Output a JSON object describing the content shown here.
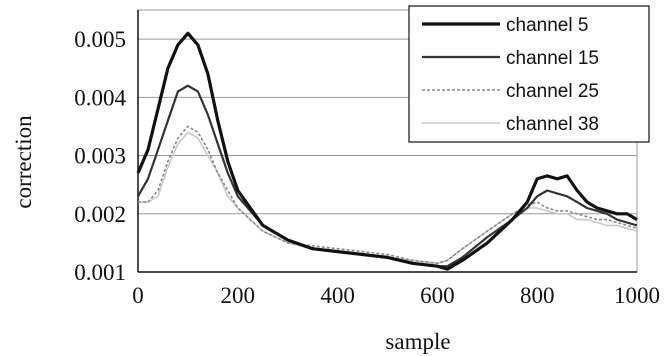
{
  "chart_data": {
    "type": "line",
    "title": "",
    "xlabel": "sample",
    "ylabel": "correction",
    "xlim": [
      0,
      1000
    ],
    "ylim": [
      0.001,
      0.0055
    ],
    "x_ticks": [
      "0",
      "200",
      "400",
      "600",
      "800",
      "1000"
    ],
    "y_ticks": [
      "0.001",
      "0.002",
      "0.003",
      "0.004",
      "0.005"
    ],
    "grid": "horizontal",
    "legend_position": "top-right",
    "series": [
      {
        "name": "channel 5",
        "color": "#111111",
        "x": [
          0,
          20,
          40,
          60,
          80,
          100,
          120,
          140,
          160,
          180,
          200,
          250,
          300,
          350,
          400,
          450,
          500,
          550,
          600,
          620,
          650,
          700,
          750,
          780,
          800,
          820,
          840,
          860,
          880,
          900,
          920,
          940,
          960,
          980,
          1000
        ],
        "values": [
          0.0027,
          0.0031,
          0.0038,
          0.0045,
          0.0049,
          0.0051,
          0.0049,
          0.0044,
          0.0036,
          0.0029,
          0.0024,
          0.0018,
          0.00155,
          0.0014,
          0.00135,
          0.0013,
          0.00125,
          0.00115,
          0.0011,
          0.00105,
          0.0012,
          0.0015,
          0.0019,
          0.0022,
          0.0026,
          0.00265,
          0.0026,
          0.00265,
          0.0024,
          0.0022,
          0.0021,
          0.00205,
          0.002,
          0.002,
          0.0019
        ]
      },
      {
        "name": "channel 15",
        "color": "#333333",
        "x": [
          0,
          20,
          40,
          60,
          80,
          100,
          120,
          140,
          160,
          180,
          200,
          250,
          300,
          350,
          400,
          450,
          500,
          550,
          600,
          620,
          650,
          700,
          750,
          780,
          800,
          820,
          840,
          860,
          880,
          900,
          920,
          940,
          960,
          980,
          1000
        ],
        "values": [
          0.0023,
          0.0026,
          0.0031,
          0.0036,
          0.0041,
          0.0042,
          0.0041,
          0.0037,
          0.0032,
          0.0027,
          0.0023,
          0.0018,
          0.00155,
          0.0014,
          0.00135,
          0.0013,
          0.00125,
          0.00115,
          0.0011,
          0.0011,
          0.00125,
          0.0016,
          0.0019,
          0.0021,
          0.0023,
          0.0024,
          0.00235,
          0.0023,
          0.0022,
          0.0021,
          0.00205,
          0.002,
          0.0019,
          0.00185,
          0.0018
        ]
      },
      {
        "name": "channel 25",
        "color": "#8a8a8a",
        "x": [
          0,
          20,
          40,
          60,
          80,
          100,
          120,
          140,
          160,
          180,
          200,
          250,
          300,
          350,
          400,
          450,
          500,
          550,
          600,
          620,
          650,
          700,
          750,
          780,
          800,
          820,
          840,
          860,
          880,
          900,
          920,
          940,
          960,
          980,
          1000
        ],
        "values": [
          0.0022,
          0.0022,
          0.0024,
          0.0029,
          0.0033,
          0.0035,
          0.0034,
          0.0031,
          0.0027,
          0.0024,
          0.0021,
          0.0017,
          0.0015,
          0.00145,
          0.0014,
          0.00135,
          0.0013,
          0.0012,
          0.00115,
          0.0012,
          0.0014,
          0.0017,
          0.002,
          0.00215,
          0.0022,
          0.0021,
          0.00205,
          0.00205,
          0.002,
          0.00195,
          0.0019,
          0.0019,
          0.00185,
          0.0018,
          0.00175
        ]
      },
      {
        "name": "channel 38",
        "color": "#c8c8c8",
        "x": [
          0,
          20,
          40,
          60,
          80,
          100,
          120,
          140,
          160,
          180,
          200,
          250,
          300,
          350,
          400,
          450,
          500,
          550,
          600,
          620,
          650,
          700,
          750,
          780,
          800,
          820,
          840,
          860,
          880,
          900,
          920,
          940,
          960,
          980,
          1000
        ],
        "values": [
          0.0022,
          0.0022,
          0.0023,
          0.0028,
          0.0032,
          0.0034,
          0.0033,
          0.003,
          0.0027,
          0.0023,
          0.0021,
          0.0017,
          0.0015,
          0.0014,
          0.00135,
          0.0013,
          0.00125,
          0.0012,
          0.00115,
          0.0012,
          0.0014,
          0.0017,
          0.002,
          0.0021,
          0.0021,
          0.00205,
          0.002,
          0.002,
          0.0019,
          0.0019,
          0.00185,
          0.0018,
          0.0018,
          0.00175,
          0.0017
        ]
      }
    ]
  }
}
